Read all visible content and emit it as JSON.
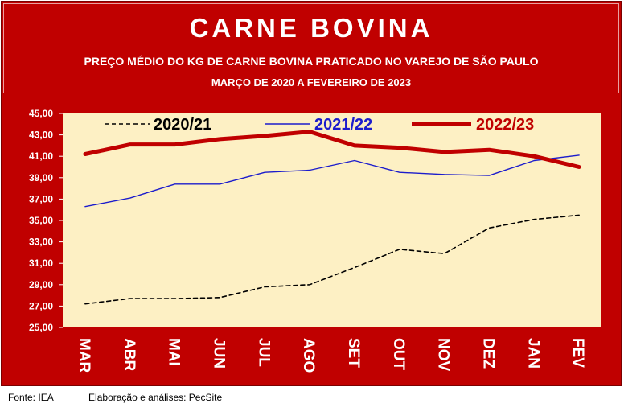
{
  "header": {
    "title": "CARNE BOVINA",
    "subtitle": "PREÇO MÉDIO DO KG DE CARNE BOVINA PRATICADO NO VAREJO  DE SÃO PAULO",
    "period": "MARÇO DE 2020 A FEVEREIRO DE 2023"
  },
  "footer": {
    "source": "Fonte: IEA",
    "credit": "Elaboração e análises: PecSite"
  },
  "colors": {
    "frame": "#c00000",
    "plot_background": "#fdf0c4",
    "series_2020": "#000000",
    "series_2021": "#1c1ccc",
    "series_2022": "#c00000"
  },
  "chart_data": {
    "type": "line",
    "categories": [
      "MAR",
      "ABR",
      "MAI",
      "JUN",
      "JUL",
      "AGO",
      "SET",
      "OUT",
      "NOV",
      "DEZ",
      "JAN",
      "FEV"
    ],
    "ylim": [
      25,
      45
    ],
    "yticks": [
      "25,00",
      "27,00",
      "29,00",
      "31,00",
      "33,00",
      "35,00",
      "37,00",
      "39,00",
      "41,00",
      "43,00",
      "45,00"
    ],
    "legend_position": "top",
    "grid": false,
    "series": [
      {
        "name": "2020/21",
        "style": "dashed",
        "values": [
          27.2,
          27.7,
          27.7,
          27.8,
          28.8,
          29.0,
          30.6,
          32.3,
          31.9,
          34.3,
          35.1,
          35.5
        ]
      },
      {
        "name": "2021/22",
        "style": "solid-thin",
        "values": [
          36.3,
          37.1,
          38.4,
          38.4,
          39.5,
          39.7,
          40.6,
          39.5,
          39.3,
          39.2,
          40.6,
          41.1
        ]
      },
      {
        "name": "2022/23",
        "style": "solid-thick",
        "values": [
          41.2,
          42.1,
          42.1,
          42.6,
          42.9,
          43.3,
          42.0,
          41.8,
          41.4,
          41.6,
          41.0,
          40.0
        ]
      }
    ]
  }
}
